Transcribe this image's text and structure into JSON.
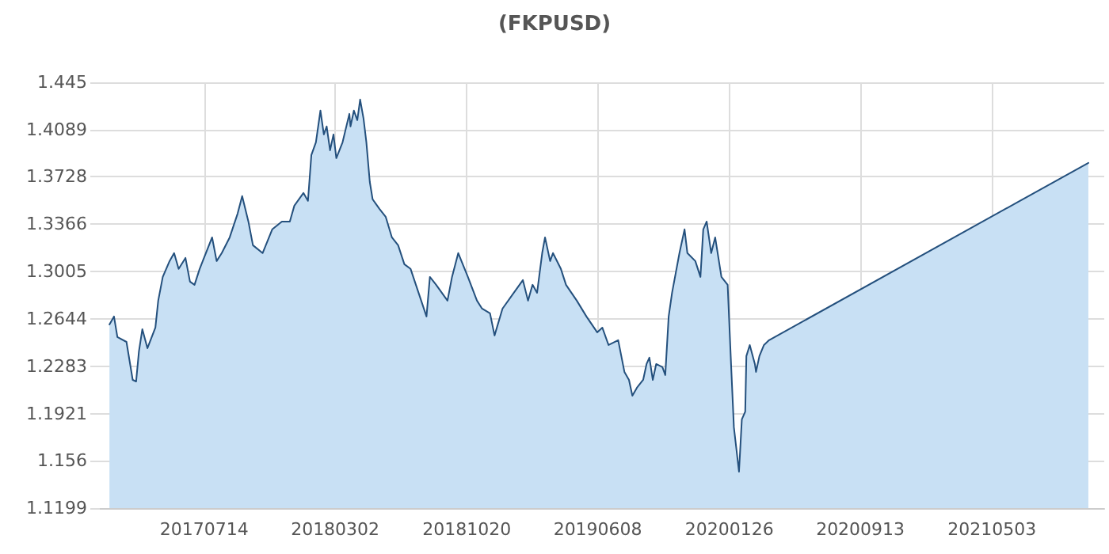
{
  "chart_data": {
    "type": "area",
    "title": "(FKPUSD)",
    "x": [
      "2017-01-28",
      "2017-02-05",
      "2017-02-11",
      "2017-02-27",
      "2017-03-10",
      "2017-03-16",
      "2017-03-21",
      "2017-03-27",
      "2017-04-05",
      "2017-04-19",
      "2017-04-24",
      "2017-05-02",
      "2017-05-14",
      "2017-05-22",
      "2017-05-30",
      "2017-06-11",
      "2017-06-19",
      "2017-06-27",
      "2017-07-06",
      "2017-07-17",
      "2017-07-28",
      "2017-08-05",
      "2017-08-14",
      "2017-08-28",
      "2017-09-11",
      "2017-09-19",
      "2017-09-30",
      "2017-10-08",
      "2017-10-25",
      "2017-11-11",
      "2017-11-28",
      "2017-12-12",
      "2017-12-20",
      "2018-01-05",
      "2018-01-13",
      "2018-01-19",
      "2018-01-27",
      "2018-02-04",
      "2018-02-10",
      "2018-02-15",
      "2018-02-21",
      "2018-02-27",
      "2018-03-04",
      "2018-03-15",
      "2018-03-27",
      "2018-03-29",
      "2018-04-04",
      "2018-04-10",
      "2018-04-15",
      "2018-04-21",
      "2018-04-26",
      "2018-05-02",
      "2018-05-07",
      "2018-05-19",
      "2018-05-30",
      "2018-06-10",
      "2018-06-21",
      "2018-07-02",
      "2018-07-13",
      "2018-07-27",
      "2018-08-10",
      "2018-08-16",
      "2018-08-27",
      "2018-09-16",
      "2018-09-24",
      "2018-10-05",
      "2018-10-22",
      "2018-11-07",
      "2018-11-16",
      "2018-11-30",
      "2018-12-08",
      "2018-12-22",
      "2019-01-11",
      "2019-01-27",
      "2019-02-05",
      "2019-02-13",
      "2019-02-21",
      "2019-03-02",
      "2019-03-07",
      "2019-03-16",
      "2019-03-21",
      "2019-04-04",
      "2019-04-13",
      "2019-05-02",
      "2019-05-19",
      "2019-06-07",
      "2019-06-16",
      "2019-06-27",
      "2019-07-14",
      "2019-07-25",
      "2019-08-02",
      "2019-08-08",
      "2019-08-16",
      "2019-08-27",
      "2019-09-02",
      "2019-09-07",
      "2019-09-13",
      "2019-09-19",
      "2019-09-30",
      "2019-10-05",
      "2019-10-11",
      "2019-10-17",
      "2019-10-30",
      "2019-11-08",
      "2019-11-13",
      "2019-11-27",
      "2019-12-06",
      "2019-12-11",
      "2019-12-17",
      "2019-12-25",
      "2020-01-01",
      "2020-01-12",
      "2020-01-23",
      "2020-01-29",
      "2020-02-03",
      "2020-02-12",
      "2020-02-14",
      "2020-02-17",
      "2020-02-23",
      "2020-02-25",
      "2020-03-02",
      "2020-03-11",
      "2020-03-13",
      "2020-03-19",
      "2020-03-27",
      "2020-04-05",
      "2021-10-20"
    ],
    "series": [
      {
        "color": "#24507d",
        "values": [
          1.2601,
          1.2662,
          1.2505,
          1.2468,
          1.2178,
          1.2166,
          1.2396,
          1.2565,
          1.242,
          1.2577,
          1.2783,
          1.2964,
          1.3085,
          1.3146,
          1.3025,
          1.3109,
          1.2928,
          1.2904,
          1.3025,
          1.3146,
          1.3266,
          1.3085,
          1.3146,
          1.3266,
          1.3448,
          1.3581,
          1.3387,
          1.3206,
          1.3146,
          1.3327,
          1.3387,
          1.3387,
          1.3508,
          1.3605,
          1.3545,
          1.3895,
          1.3992,
          1.4234,
          1.4052,
          1.4113,
          1.3931,
          1.4052,
          1.3871,
          1.3992,
          1.4209,
          1.4113,
          1.4234,
          1.4161,
          1.4318,
          1.4173,
          1.3992,
          1.369,
          1.3557,
          1.3484,
          1.3424,
          1.3266,
          1.3206,
          1.3061,
          1.3025,
          1.2843,
          1.2662,
          1.2964,
          1.2904,
          1.2783,
          1.2964,
          1.3146,
          1.2964,
          1.2783,
          1.2722,
          1.2686,
          1.2517,
          1.2722,
          1.2843,
          1.294,
          1.2783,
          1.2904,
          1.2843,
          1.3146,
          1.3266,
          1.3085,
          1.3146,
          1.3025,
          1.2904,
          1.2783,
          1.2662,
          1.2541,
          1.2577,
          1.2444,
          1.2481,
          1.2239,
          1.2178,
          1.2057,
          1.2118,
          1.2178,
          1.2299,
          1.2348,
          1.2178,
          1.2299,
          1.2275,
          1.2215,
          1.2662,
          1.2843,
          1.3146,
          1.3327,
          1.3146,
          1.3085,
          1.2964,
          1.3327,
          1.3387,
          1.3146,
          1.3266,
          1.2964,
          1.2904,
          1.2299,
          1.1816,
          1.1477,
          1.1634,
          1.1876,
          1.1936,
          1.236,
          1.2444,
          1.2299,
          1.2239,
          1.236,
          1.2444,
          1.2481,
          1.3835
        ]
      }
    ],
    "xlim": [
      "2017-01-11",
      "2021-11-17"
    ],
    "xticks": [
      {
        "value": "2017-07-14",
        "label": "20170714"
      },
      {
        "value": "2018-03-02",
        "label": "20180302"
      },
      {
        "value": "2018-10-20",
        "label": "20181020"
      },
      {
        "value": "2019-06-08",
        "label": "20190608"
      },
      {
        "value": "2020-01-26",
        "label": "20200126"
      },
      {
        "value": "2020-09-13",
        "label": "20200913"
      },
      {
        "value": "2021-05-03",
        "label": "20210503"
      }
    ],
    "ylim": [
      1.1199,
      1.445
    ],
    "yticks": [
      1.1199,
      1.156,
      1.1921,
      1.2283,
      1.2644,
      1.3005,
      1.3366,
      1.3728,
      1.4089,
      1.445
    ],
    "grid": true,
    "marker": "none",
    "line_style": "solid"
  }
}
